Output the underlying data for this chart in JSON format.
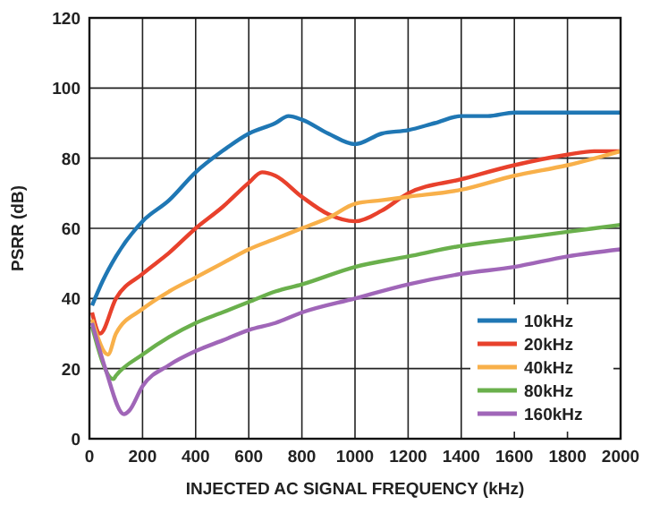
{
  "chart_data": {
    "type": "line",
    "xlabel": "INJECTED AC SIGNAL FREQUENCY (kHz)",
    "ylabel": "PSRR (dB)",
    "xlim": [
      0,
      2000
    ],
    "xticks": [
      0,
      200,
      400,
      600,
      800,
      1000,
      1200,
      1400,
      1600,
      1800,
      2000
    ],
    "ylim": [
      0,
      120
    ],
    "yticks": [
      0,
      20,
      40,
      60,
      80,
      100,
      120
    ],
    "grid": true,
    "legend": "bottom right",
    "marker": "none",
    "line_style": "solid",
    "series": [
      {
        "name": "10kHz",
        "color": "#1f77b4",
        "x": [
          10,
          50,
          100,
          200,
          300,
          400,
          500,
          600,
          700,
          750,
          800,
          900,
          1000,
          1100,
          1200,
          1300,
          1400,
          1500,
          1600,
          1800,
          1900,
          2000
        ],
        "values": [
          38,
          45,
          52,
          62,
          68,
          76,
          82,
          87,
          90,
          92,
          91,
          87,
          84,
          87,
          88,
          90,
          92,
          92,
          93,
          93,
          93,
          93
        ]
      },
      {
        "name": "20kHz",
        "color": "#e8412c",
        "x": [
          10,
          40,
          100,
          200,
          300,
          400,
          500,
          600,
          650,
          700,
          800,
          900,
          1000,
          1100,
          1200,
          1400,
          1600,
          1800,
          1900,
          2000
        ],
        "values": [
          36,
          30,
          40,
          47,
          53,
          60,
          66,
          73,
          76,
          75,
          69,
          64,
          62,
          65,
          70,
          74,
          78,
          81,
          82,
          82
        ]
      },
      {
        "name": "40kHz",
        "color": "#f8b04a",
        "x": [
          10,
          70,
          100,
          200,
          300,
          400,
          500,
          600,
          700,
          800,
          900,
          1000,
          1100,
          1200,
          1400,
          1600,
          1800,
          2000
        ],
        "values": [
          34,
          24,
          30,
          37,
          42,
          46,
          50,
          54,
          57,
          60,
          63,
          67,
          68,
          69,
          71,
          75,
          78,
          82
        ]
      },
      {
        "name": "80kHz",
        "color": "#6ab04c",
        "x": [
          10,
          90,
          100,
          200,
          300,
          400,
          500,
          600,
          700,
          800,
          1000,
          1200,
          1400,
          1600,
          1800,
          2000
        ],
        "values": [
          32,
          17,
          18,
          24,
          29,
          33,
          36,
          39,
          42,
          44,
          49,
          52,
          55,
          57,
          59,
          61
        ]
      },
      {
        "name": "160kHz",
        "color": "#a066b8",
        "x": [
          10,
          60,
          130,
          150,
          200,
          300,
          400,
          500,
          600,
          700,
          800,
          1000,
          1200,
          1400,
          1600,
          1800,
          2000
        ],
        "values": [
          33,
          20,
          7,
          8,
          15,
          21,
          25,
          28,
          31,
          33,
          36,
          40,
          44,
          47,
          49,
          52,
          54
        ]
      }
    ]
  }
}
